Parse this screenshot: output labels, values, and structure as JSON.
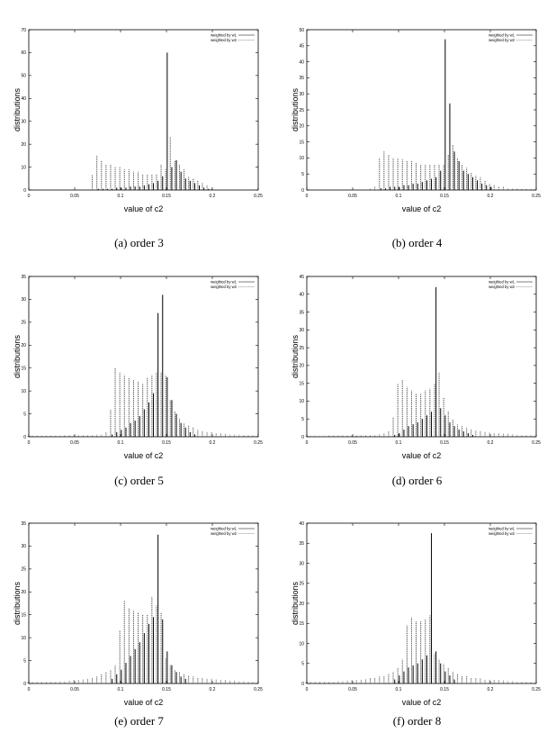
{
  "chart_data": [
    {
      "type": "bar",
      "caption": "(a) order 3",
      "xlabel": "value of c2",
      "ylabel": "distributions",
      "xlim": [
        0,
        0.25
      ],
      "ylim": [
        0,
        70
      ],
      "xticks": [
        "0",
        "0.05",
        "0.1",
        "0.15",
        "0.2",
        "0.25"
      ],
      "yticks": [
        "0",
        "10",
        "20",
        "30",
        "40",
        "50",
        "60",
        "70"
      ],
      "grid": false,
      "legend_position": "top-right",
      "series": [
        {
          "name": "weighted by w1",
          "style": "solid",
          "x": [
            0.075,
            0.08,
            0.085,
            0.09,
            0.095,
            0.1,
            0.105,
            0.11,
            0.115,
            0.12,
            0.125,
            0.13,
            0.135,
            0.14,
            0.145,
            0.15,
            0.155,
            0.16,
            0.165,
            0.17,
            0.175,
            0.18,
            0.185,
            0.19,
            0.195
          ],
          "y": [
            0.5,
            0.5,
            0.5,
            0.5,
            1,
            1,
            1,
            1.5,
            1.5,
            1.5,
            2,
            2.5,
            3,
            4,
            6,
            60,
            10,
            13,
            8,
            5,
            4,
            3,
            2,
            1,
            0.5
          ]
        },
        {
          "name": "weighted by w2",
          "style": "dashed",
          "x": [
            0.07,
            0.075,
            0.08,
            0.085,
            0.09,
            0.095,
            0.1,
            0.105,
            0.11,
            0.115,
            0.12,
            0.125,
            0.13,
            0.135,
            0.14,
            0.145,
            0.15,
            0.155,
            0.16,
            0.165,
            0.17,
            0.175,
            0.18,
            0.185,
            0.19,
            0.195,
            0.2
          ],
          "y": [
            6.5,
            15,
            13,
            11,
            11,
            10,
            10,
            9,
            9,
            8,
            8,
            7,
            7,
            7,
            7,
            11,
            9,
            23,
            13,
            11,
            9,
            6,
            5,
            4,
            3,
            2,
            1
          ]
        }
      ]
    },
    {
      "type": "bar",
      "caption": "(b) order 4",
      "xlabel": "value of c2",
      "ylabel": "distributions",
      "xlim": [
        0,
        0.25
      ],
      "ylim": [
        0,
        50
      ],
      "xticks": [
        "0",
        "0.05",
        "0.1",
        "0.15",
        "0.2",
        "0.25"
      ],
      "yticks": [
        "0",
        "5",
        "10",
        "15",
        "20",
        "25",
        "30",
        "35",
        "40",
        "45",
        "50"
      ],
      "grid": false,
      "legend_position": "top-right",
      "series": [
        {
          "name": "weighted by w1",
          "style": "solid",
          "x": [
            0.08,
            0.085,
            0.09,
            0.095,
            0.1,
            0.105,
            0.11,
            0.115,
            0.12,
            0.125,
            0.13,
            0.135,
            0.14,
            0.145,
            0.15,
            0.155,
            0.16,
            0.165,
            0.17,
            0.175,
            0.18,
            0.185,
            0.19,
            0.195,
            0.2
          ],
          "y": [
            0.5,
            0.5,
            1,
            1,
            1,
            1.5,
            1.5,
            2,
            2,
            2.5,
            3,
            3.5,
            4,
            6,
            47,
            27,
            12,
            9,
            6,
            5,
            4,
            3,
            2,
            1.5,
            1
          ]
        },
        {
          "name": "weighted by w2",
          "style": "dashed",
          "x": [
            0.07,
            0.075,
            0.08,
            0.085,
            0.09,
            0.095,
            0.1,
            0.105,
            0.11,
            0.115,
            0.12,
            0.125,
            0.13,
            0.135,
            0.14,
            0.145,
            0.15,
            0.155,
            0.16,
            0.165,
            0.17,
            0.175,
            0.18,
            0.185,
            0.19,
            0.195,
            0.2,
            0.205,
            0.21,
            0.215,
            0.22,
            0.225,
            0.23,
            0.235,
            0.24,
            0.245
          ],
          "y": [
            0.5,
            1,
            10,
            12,
            11,
            10,
            10,
            9.5,
            9,
            9,
            8.5,
            8,
            8,
            8,
            8,
            8,
            8,
            11,
            14,
            10,
            8,
            7,
            5.5,
            4.5,
            4,
            3,
            2,
            1.5,
            1,
            1,
            0.5,
            0.5,
            0.5,
            0.3,
            0.3,
            0.3
          ]
        }
      ]
    },
    {
      "type": "bar",
      "caption": "(c) order 5",
      "xlabel": "value of c2",
      "ylabel": "distributions",
      "xlim": [
        0,
        0.25
      ],
      "ylim": [
        0,
        35
      ],
      "xticks": [
        "0",
        "0.05",
        "0.1",
        "0.15",
        "0.2",
        "0.25"
      ],
      "yticks": [
        "0",
        "5",
        "10",
        "15",
        "20",
        "25",
        "30",
        "35"
      ],
      "grid": false,
      "legend_position": "top-right",
      "series": [
        {
          "name": "weighted by w1",
          "style": "solid",
          "x": [
            0.09,
            0.095,
            0.1,
            0.105,
            0.11,
            0.115,
            0.12,
            0.125,
            0.13,
            0.135,
            0.14,
            0.145,
            0.15,
            0.155,
            0.16,
            0.165,
            0.17,
            0.175,
            0.18
          ],
          "y": [
            0.5,
            1,
            1.5,
            2,
            3,
            3.5,
            4.5,
            6,
            7.5,
            9.5,
            27,
            31,
            13,
            8,
            5,
            3,
            2,
            1,
            0.5
          ]
        },
        {
          "name": "weighted by w2",
          "style": "dashed",
          "x": [
            0.0,
            0.005,
            0.01,
            0.015,
            0.02,
            0.025,
            0.03,
            0.035,
            0.04,
            0.045,
            0.05,
            0.055,
            0.06,
            0.065,
            0.07,
            0.075,
            0.08,
            0.085,
            0.09,
            0.095,
            0.1,
            0.105,
            0.11,
            0.115,
            0.12,
            0.125,
            0.13,
            0.135,
            0.14,
            0.145,
            0.15,
            0.155,
            0.16,
            0.165,
            0.17,
            0.175,
            0.18,
            0.185,
            0.19,
            0.195,
            0.2,
            0.205,
            0.21,
            0.215,
            0.22,
            0.225,
            0.23,
            0.235,
            0.24,
            0.245
          ],
          "y": [
            0.2,
            0.2,
            0.2,
            0.2,
            0.2,
            0.2,
            0.2,
            0.2,
            0.3,
            0.3,
            0.3,
            0.3,
            0.3,
            0.4,
            0.4,
            0.5,
            0.5,
            1,
            6,
            15,
            14,
            13.5,
            13,
            12.5,
            12,
            11.5,
            13,
            13.5,
            14,
            14,
            13.5,
            8,
            5.5,
            4,
            3,
            2.5,
            2,
            1.5,
            1.2,
            1,
            1,
            0.8,
            0.7,
            0.6,
            0.5,
            0.5,
            0.5,
            0.4,
            0.4,
            0.3
          ]
        }
      ]
    },
    {
      "type": "bar",
      "caption": "(d) order 6",
      "xlabel": "value of c2",
      "ylabel": "distributions",
      "xlim": [
        0,
        0.25
      ],
      "ylim": [
        0,
        45
      ],
      "xticks": [
        "0",
        "0.05",
        "0.1",
        "0.15",
        "0.2",
        "0.25"
      ],
      "yticks": [
        "0",
        "5",
        "10",
        "15",
        "20",
        "25",
        "30",
        "35",
        "40",
        "45"
      ],
      "grid": false,
      "legend_position": "top-right",
      "series": [
        {
          "name": "weighted by w1",
          "style": "solid",
          "x": [
            0.095,
            0.1,
            0.105,
            0.11,
            0.115,
            0.12,
            0.125,
            0.13,
            0.135,
            0.14,
            0.145,
            0.15,
            0.155,
            0.16,
            0.165,
            0.17,
            0.175,
            0.18
          ],
          "y": [
            0.5,
            1,
            2,
            3,
            3.5,
            4,
            5,
            6,
            7,
            42,
            8,
            6,
            4,
            3,
            2,
            1.5,
            1,
            0.5
          ]
        },
        {
          "name": "weighted by w2",
          "style": "dashed",
          "x": [
            0.0,
            0.005,
            0.01,
            0.015,
            0.02,
            0.025,
            0.03,
            0.035,
            0.04,
            0.045,
            0.05,
            0.055,
            0.06,
            0.065,
            0.07,
            0.075,
            0.08,
            0.085,
            0.09,
            0.095,
            0.1,
            0.105,
            0.11,
            0.115,
            0.12,
            0.125,
            0.13,
            0.135,
            0.14,
            0.145,
            0.15,
            0.155,
            0.16,
            0.165,
            0.17,
            0.175,
            0.18,
            0.185,
            0.19,
            0.195,
            0.2,
            0.205,
            0.21,
            0.215,
            0.22,
            0.225,
            0.23,
            0.235,
            0.24,
            0.245
          ],
          "y": [
            0.2,
            0.2,
            0.2,
            0.2,
            0.2,
            0.3,
            0.3,
            0.3,
            0.3,
            0.3,
            0.4,
            0.4,
            0.5,
            0.5,
            0.5,
            0.6,
            0.7,
            1,
            1.5,
            5.5,
            15,
            16,
            14,
            13,
            12,
            12,
            13,
            13.5,
            15,
            18,
            11,
            7,
            5,
            3.5,
            3,
            2.5,
            2,
            1.8,
            1.5,
            1.3,
            1.2,
            1,
            1,
            0.8,
            0.8,
            0.7,
            0.6,
            0.5,
            0.5,
            0.4
          ]
        }
      ]
    },
    {
      "type": "bar",
      "caption": "(e) order 7",
      "xlabel": "value of c2",
      "ylabel": "distributions",
      "xlim": [
        0,
        0.25
      ],
      "ylim": [
        0,
        35
      ],
      "xticks": [
        "0",
        "0.05",
        "0.1",
        "0.15",
        "0.2",
        "0.25"
      ],
      "yticks": [
        "0",
        "5",
        "10",
        "15",
        "20",
        "25",
        "30",
        "35"
      ],
      "grid": false,
      "legend_position": "top-right",
      "series": [
        {
          "name": "weighted by w1",
          "style": "solid",
          "x": [
            0.09,
            0.095,
            0.1,
            0.105,
            0.11,
            0.115,
            0.12,
            0.125,
            0.13,
            0.135,
            0.14,
            0.145,
            0.15,
            0.155,
            0.16,
            0.165,
            0.17
          ],
          "y": [
            1,
            2,
            3,
            4.5,
            6,
            7.5,
            9,
            11,
            13,
            14.5,
            32.5,
            14,
            7,
            4,
            2.5,
            1.5,
            1
          ]
        },
        {
          "name": "weighted by w2",
          "style": "dashed",
          "x": [
            0.0,
            0.005,
            0.01,
            0.015,
            0.02,
            0.025,
            0.03,
            0.035,
            0.04,
            0.045,
            0.05,
            0.055,
            0.06,
            0.065,
            0.07,
            0.075,
            0.08,
            0.085,
            0.09,
            0.095,
            0.1,
            0.105,
            0.11,
            0.115,
            0.12,
            0.125,
            0.13,
            0.135,
            0.14,
            0.145,
            0.15,
            0.155,
            0.16,
            0.165,
            0.17,
            0.175,
            0.18,
            0.185,
            0.19,
            0.195,
            0.2,
            0.205,
            0.21,
            0.215,
            0.22,
            0.225,
            0.23,
            0.235,
            0.24,
            0.245
          ],
          "y": [
            0.3,
            0.3,
            0.3,
            0.3,
            0.4,
            0.4,
            0.4,
            0.5,
            0.5,
            0.6,
            0.7,
            0.8,
            0.9,
            1,
            1.2,
            1.5,
            2,
            2.5,
            3,
            4,
            11.5,
            18,
            16.5,
            16,
            15.5,
            15,
            15,
            19,
            17,
            15.5,
            5.5,
            4,
            3,
            2.5,
            2,
            1.8,
            1.5,
            1.3,
            1.2,
            1,
            1,
            0.9,
            0.8,
            0.7,
            0.6,
            0.6,
            0.5,
            0.5,
            0.4,
            0.4
          ]
        }
      ]
    },
    {
      "type": "bar",
      "caption": "(f) order 8",
      "xlabel": "value of c2",
      "ylabel": "distributions",
      "xlim": [
        0,
        0.25
      ],
      "ylim": [
        0,
        40
      ],
      "xticks": [
        "0",
        "0.05",
        "0.1",
        "0.15",
        "0.2",
        "0.25"
      ],
      "yticks": [
        "0",
        "5",
        "10",
        "15",
        "20",
        "25",
        "30",
        "35",
        "40"
      ],
      "grid": false,
      "legend_position": "top-right",
      "series": [
        {
          "name": "weighted by w1",
          "style": "solid",
          "x": [
            0.095,
            0.1,
            0.105,
            0.11,
            0.115,
            0.12,
            0.125,
            0.13,
            0.135,
            0.14,
            0.145,
            0.15,
            0.155,
            0.16
          ],
          "y": [
            1,
            2,
            3,
            4,
            4.5,
            5,
            6,
            7,
            37.5,
            8,
            5,
            3,
            2,
            1
          ]
        },
        {
          "name": "weighted by w2",
          "style": "dashed",
          "x": [
            0.0,
            0.005,
            0.01,
            0.015,
            0.02,
            0.025,
            0.03,
            0.035,
            0.04,
            0.045,
            0.05,
            0.055,
            0.06,
            0.065,
            0.07,
            0.075,
            0.08,
            0.085,
            0.09,
            0.095,
            0.1,
            0.105,
            0.11,
            0.115,
            0.12,
            0.125,
            0.13,
            0.135,
            0.14,
            0.145,
            0.15,
            0.155,
            0.16,
            0.165,
            0.17,
            0.175,
            0.18,
            0.185,
            0.19,
            0.195,
            0.2,
            0.205,
            0.21,
            0.215,
            0.22,
            0.225,
            0.23,
            0.235,
            0.24,
            0.245
          ],
          "y": [
            0.3,
            0.3,
            0.3,
            0.4,
            0.4,
            0.5,
            0.5,
            0.6,
            0.6,
            0.7,
            0.8,
            0.9,
            1,
            1.1,
            1.3,
            1.5,
            1.7,
            2,
            2.5,
            3,
            4,
            6,
            14.5,
            16.5,
            15.5,
            15.5,
            16,
            17,
            7.5,
            6,
            5,
            4,
            3,
            2.5,
            2,
            1.8,
            1.5,
            1.3,
            1.2,
            1,
            1,
            0.9,
            0.8,
            0.7,
            0.6,
            0.6,
            0.5,
            0.5,
            0.4,
            0.4
          ]
        }
      ]
    }
  ]
}
